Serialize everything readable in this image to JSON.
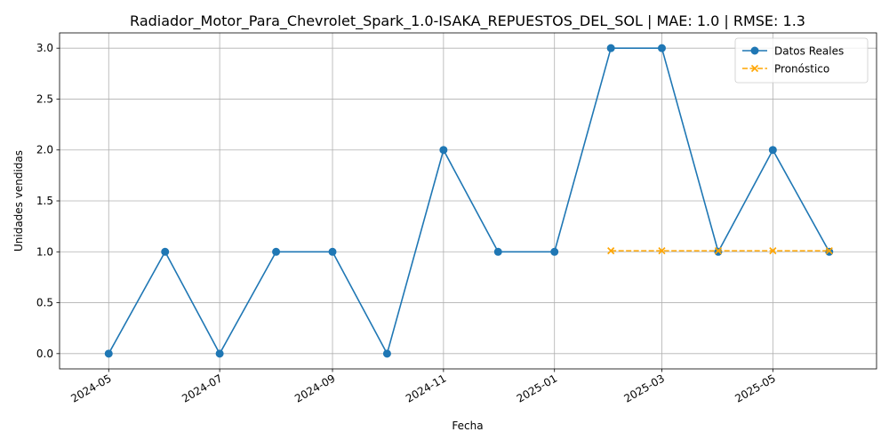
{
  "chart_data": {
    "type": "line",
    "title": "Radiador_Motor_Para_Chevrolet_Spark_1.0-ISAKA_REPUESTOS_DEL_SOL | MAE: 1.0 | RMSE: 1.3",
    "xlabel": "Fecha",
    "ylabel": "Unidades vendidas",
    "xlim": [
      "2024-04-04",
      "2025-06-27"
    ],
    "ylim": [
      -0.15,
      3.15
    ],
    "grid": true,
    "legend_position": "top-right",
    "x_ticks": [
      "2024-05",
      "2024-07",
      "2024-09",
      "2024-11",
      "2025-01",
      "2025-03",
      "2025-05"
    ],
    "y_ticks": [
      0.0,
      0.5,
      1.0,
      1.5,
      2.0,
      2.5,
      3.0
    ],
    "series": [
      {
        "name": "Datos Reales",
        "color": "#1f77b4",
        "marker": "circle",
        "line_style": "solid",
        "x": [
          "2024-05-01",
          "2024-06-01",
          "2024-07-01",
          "2024-08-01",
          "2024-09-01",
          "2024-10-01",
          "2024-11-01",
          "2024-12-01",
          "2025-01-01",
          "2025-02-01",
          "2025-03-01",
          "2025-04-01",
          "2025-05-01",
          "2025-06-01"
        ],
        "values": [
          0,
          1,
          0,
          1,
          1,
          0,
          2,
          1,
          1,
          3,
          3,
          1,
          2,
          1
        ]
      },
      {
        "name": "Pronóstico",
        "color": "#ffa500",
        "marker": "x",
        "line_style": "dashed",
        "x": [
          "2025-02-01",
          "2025-03-01",
          "2025-04-01",
          "2025-05-01",
          "2025-06-01"
        ],
        "values": [
          1.01,
          1.01,
          1.01,
          1.01,
          1.01
        ]
      }
    ]
  }
}
